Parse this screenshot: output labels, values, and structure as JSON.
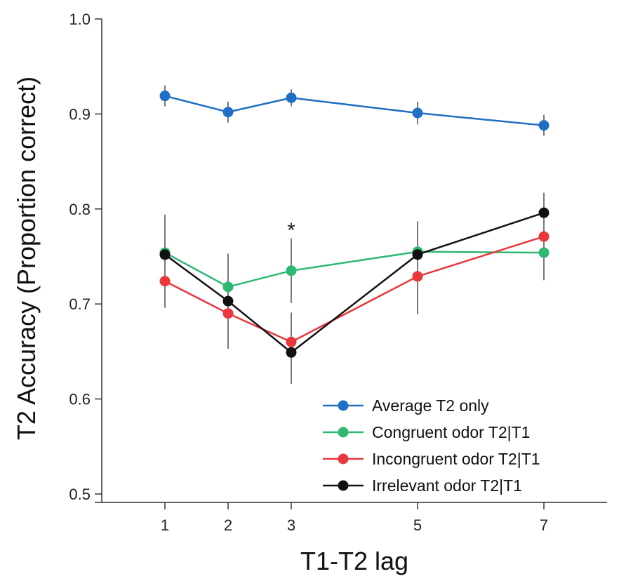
{
  "chart_data": {
    "type": "line",
    "xlabel": "T1-T2 lag",
    "ylabel": "T2 Accuracy (Proportion correct)",
    "x": [
      1,
      2,
      3,
      5,
      7
    ],
    "x_tick_labels": [
      "1",
      "2",
      "3",
      "5",
      "7"
    ],
    "xlim": [
      0,
      8.0
    ],
    "ylim": [
      0.5,
      1.0
    ],
    "y_ticks": [
      0.5,
      0.6,
      0.7,
      0.8,
      0.9,
      1.0
    ],
    "y_tick_labels": [
      "0.5",
      "0.6",
      "0.7",
      "0.8",
      "0.9",
      "1.0"
    ],
    "legend_position": "bottom-right",
    "series": [
      {
        "name": "Average T2 only",
        "color": "#1f6fc5",
        "values": [
          0.919,
          0.902,
          0.917,
          0.901,
          0.888
        ],
        "errors": [
          0.011,
          0.011,
          0.009,
          0.012,
          0.011
        ]
      },
      {
        "name": "Congruent odor T2|T1",
        "color": "#2eb872",
        "values": [
          0.754,
          0.718,
          0.735,
          0.755,
          0.754
        ],
        "errors": [
          0.04,
          0.026,
          0.034,
          0.032,
          0.028
        ]
      },
      {
        "name": "Incongruent odor T2|T1",
        "color": "#e8383d",
        "values": [
          0.724,
          0.69,
          0.66,
          0.729,
          0.771
        ],
        "errors": [
          0.028,
          0.036,
          0.031,
          0.04,
          0.046
        ]
      },
      {
        "name": "Irrelevant odor T2|T1",
        "color": "#111111",
        "values": [
          0.752,
          0.703,
          0.649,
          0.752,
          0.796
        ],
        "errors": [
          0.042,
          0.05,
          0.033,
          0.035,
          0.021
        ]
      }
    ],
    "annotations": [
      {
        "text": "*",
        "x": 3,
        "y": 0.785
      }
    ]
  }
}
